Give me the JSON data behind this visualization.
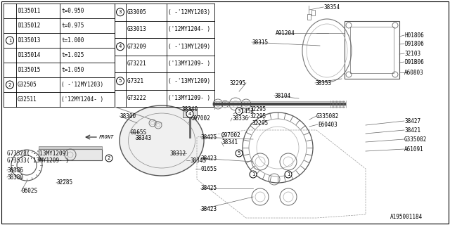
{
  "bg_color": "#ffffff",
  "table": {
    "left_col1": [
      "D135011",
      "D135012",
      "D135013",
      "D135014",
      "D135015",
      "G32505",
      "G32511"
    ],
    "left_col2": [
      "t=0.950",
      "t=0.975",
      "t=1.000",
      "t=1.025",
      "t=1.050",
      "( -'12MY1203)",
      "('12MY1204- )"
    ],
    "right_col1": [
      "G33005",
      "G33013",
      "G73209",
      "G73221",
      "G7321 ",
      "G73222"
    ],
    "right_col2": [
      "( -'12MY1203)",
      "('12MY1204- )",
      "( -'13MY1209)",
      "('13MY1209- )",
      "( -'13MY1209)",
      "('13MY1209- )"
    ]
  },
  "diagram_labels": {
    "top_right": [
      [
        "38354",
        435,
        12
      ],
      [
        "A91204",
        386,
        55
      ],
      [
        "38315",
        355,
        72
      ],
      [
        "H01806",
        480,
        55
      ],
      [
        "D91806",
        480,
        65
      ],
      [
        "32103",
        480,
        82
      ],
      [
        "D91B06",
        480,
        92
      ],
      [
        "A60803",
        480,
        108
      ],
      [
        "38353",
        420,
        118
      ],
      [
        "38104",
        390,
        135
      ]
    ]
  },
  "font_size": 5.5,
  "mono_font": "monospace"
}
